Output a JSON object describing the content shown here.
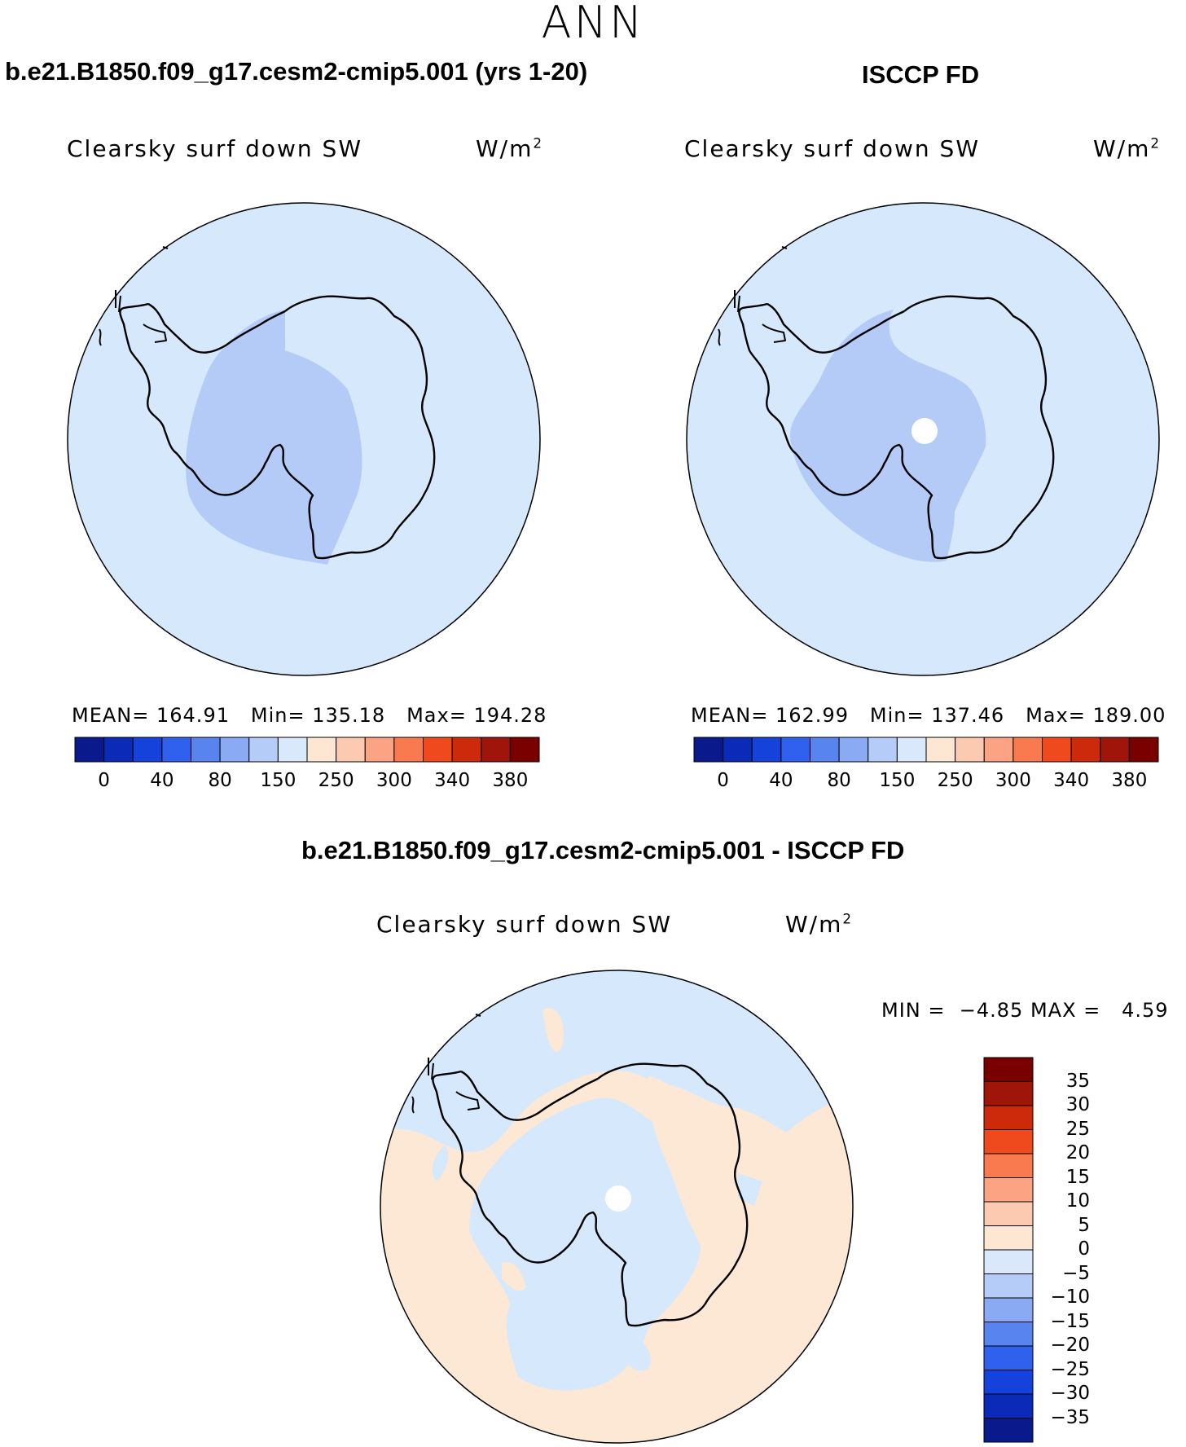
{
  "figure": {
    "title": "ANN"
  },
  "panels": [
    {
      "title": "b.e21.B1850.f09_g17.cesm2-cmip5.001 (yrs 1-20)",
      "variable": "Clearsky surf down SW",
      "units": "W/m",
      "units_exp": "2",
      "stats": {
        "mean_label": "MEAN=",
        "mean": "164.91",
        "min_label": "Min=",
        "min": "135.18",
        "max_label": "Max=",
        "max": "194.28"
      }
    },
    {
      "title": "ISCCP FD",
      "variable": "Clearsky surf down SW",
      "units": "W/m",
      "units_exp": "2",
      "stats": {
        "mean_label": "MEAN=",
        "mean": "162.99",
        "min_label": "Min=",
        "min": "137.46",
        "max_label": "Max=",
        "max": "189.00"
      }
    },
    {
      "title": "b.e21.B1850.f09_g17.cesm2-cmip5.001 - ISCCP FD",
      "variable": "Clearsky surf down SW",
      "units": "W/m",
      "units_exp": "2",
      "stats": {
        "min_label": "MIN =",
        "min": "−4.85",
        "max_label": "MAX =",
        "max": "4.59"
      }
    }
  ],
  "colorbar_abs": {
    "colors": [
      "#0a1a8c",
      "#0c2ab8",
      "#1642dc",
      "#2f60ee",
      "#5784ef",
      "#8aaaf3",
      "#b6ccf8",
      "#d9e9fb",
      "#fde7d3",
      "#fccab1",
      "#fba382",
      "#f97a4e",
      "#ee4a1e",
      "#cc2a0a",
      "#a0150a",
      "#7a0000"
    ],
    "labels": [
      "0",
      "40",
      "80",
      "150",
      "250",
      "300",
      "340",
      "380"
    ]
  },
  "colorbar_diff": {
    "colors": [
      "#0a1a8c",
      "#0c2ab8",
      "#1642dc",
      "#2f60ee",
      "#5784ef",
      "#8aaaf3",
      "#b6ccf8",
      "#d9e9fb",
      "#fde7d3",
      "#fccab1",
      "#fba382",
      "#f97a4e",
      "#ee4a1e",
      "#cc2a0a",
      "#a0150a",
      "#7a0000"
    ],
    "labels": [
      "35",
      "30",
      "25",
      "20",
      "15",
      "10",
      "5",
      "0",
      "−5",
      "−10",
      "−15",
      "−20",
      "−25",
      "−30",
      "−35"
    ]
  },
  "colors": {
    "ocean_abs": "#d6e8fb",
    "west_antarctica": "#b4cbf8",
    "diff_positive": "#fde8d5",
    "diff_negative": "#d6e8fb",
    "missing": "#ffffff",
    "coast": "#000000"
  }
}
